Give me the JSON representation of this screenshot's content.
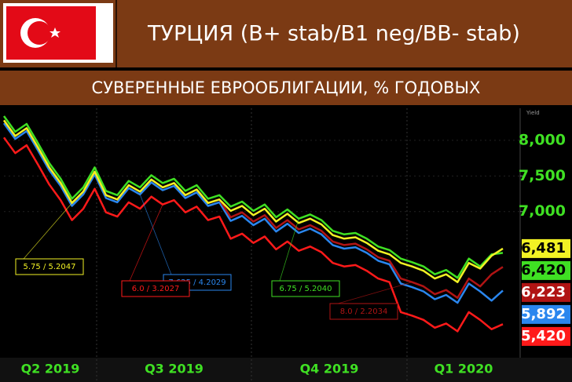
{
  "chart_data": {
    "type": "line",
    "title": "ТУРЦИЯ (B+ stab/B1 neg/BB- stab)",
    "subtitle": "СУВЕРЕННЫЕ ЕВРООБЛИГАЦИИ, % ГОДОВЫХ",
    "y_axis_label": "Yield",
    "x_labels": [
      "Q2 2019",
      "Q3 2019",
      "Q4 2019",
      "Q1 2020"
    ],
    "ylim": [
      4950,
      8450
    ],
    "yticks": [
      {
        "value": 7000,
        "label": "7,000"
      },
      {
        "value": 7500,
        "label": "7,500"
      },
      {
        "value": 8000,
        "label": "8,000"
      }
    ],
    "series": [
      {
        "name": "5.75 / 5.2047",
        "color": "#f2f224",
        "last_value": {
          "value": 6481,
          "label": "6,481"
        },
        "values": [
          8280,
          8060,
          8170,
          7900,
          7620,
          7400,
          7120,
          7280,
          7560,
          7230,
          7170,
          7370,
          7280,
          7450,
          7340,
          7400,
          7230,
          7310,
          7120,
          7170,
          7010,
          7080,
          6950,
          7040,
          6860,
          6970,
          6840,
          6900,
          6820,
          6670,
          6620,
          6640,
          6560,
          6450,
          6400,
          6280,
          6230,
          6170,
          6060,
          6120,
          6010,
          6280,
          6200,
          6380,
          6481
        ]
      },
      {
        "name": "6.75 / 5.2040",
        "color": "#3fe023",
        "last_value": {
          "value": 6420,
          "label": "6,420"
        },
        "values": [
          8340,
          8120,
          8230,
          7960,
          7680,
          7460,
          7180,
          7340,
          7620,
          7290,
          7230,
          7430,
          7340,
          7510,
          7400,
          7460,
          7290,
          7370,
          7180,
          7230,
          7070,
          7140,
          7010,
          7100,
          6920,
          7030,
          6900,
          6960,
          6880,
          6730,
          6680,
          6700,
          6620,
          6510,
          6460,
          6340,
          6290,
          6230,
          6120,
          6180,
          6070,
          6340,
          6230,
          6400,
          6420
        ]
      },
      {
        "name": "8.0 / 2.2034",
        "color": "#b01414",
        "last_value": {
          "value": 6223,
          "label": "6,223"
        },
        "values": [
          8280,
          8060,
          8170,
          7900,
          7620,
          7400,
          7120,
          7280,
          7560,
          7230,
          7170,
          7370,
          7280,
          7450,
          7340,
          7400,
          7230,
          7310,
          7120,
          7170,
          6920,
          6990,
          6860,
          6950,
          6770,
          6880,
          6750,
          6810,
          6730,
          6580,
          6530,
          6550,
          6470,
          6360,
          6310,
          6060,
          6010,
          5950,
          5840,
          5900,
          5790,
          6060,
          5950,
          6120,
          6223
        ]
      },
      {
        "name": "7.625 / 4.2029",
        "color": "#2a86ee",
        "last_value": {
          "value": 5892,
          "label": "5,892"
        },
        "values": [
          8240,
          8020,
          8130,
          7860,
          7580,
          7360,
          7080,
          7240,
          7520,
          7190,
          7130,
          7330,
          7240,
          7410,
          7300,
          7360,
          7190,
          7270,
          7080,
          7130,
          6870,
          6940,
          6810,
          6900,
          6720,
          6830,
          6700,
          6760,
          6680,
          6530,
          6480,
          6500,
          6420,
          6310,
          6260,
          5990,
          5940,
          5880,
          5770,
          5830,
          5720,
          5990,
          5880,
          5750,
          5892
        ]
      },
      {
        "name": "6.0 / 3.2027",
        "color": "#ff1a1a",
        "last_value": {
          "value": 5420,
          "label": "5,420"
        },
        "values": [
          8040,
          7820,
          7930,
          7660,
          7380,
          7160,
          6880,
          7040,
          7320,
          6990,
          6930,
          7130,
          7040,
          7210,
          7100,
          7160,
          6990,
          7070,
          6880,
          6930,
          6620,
          6690,
          6560,
          6650,
          6470,
          6580,
          6450,
          6510,
          6430,
          6280,
          6230,
          6250,
          6170,
          6060,
          6010,
          5590,
          5540,
          5480,
          5370,
          5430,
          5320,
          5590,
          5480,
          5350,
          5420
        ]
      }
    ]
  }
}
